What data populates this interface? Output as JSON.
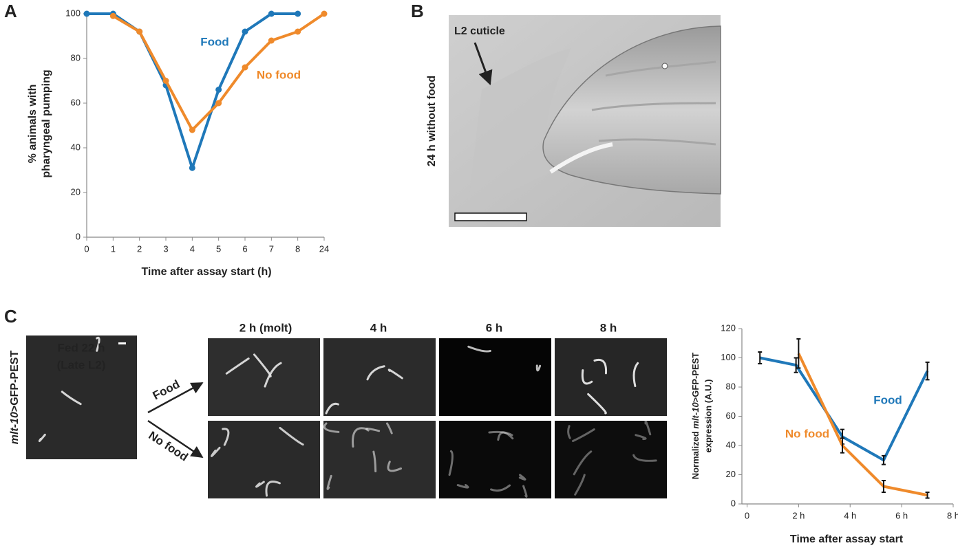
{
  "panels": {
    "a": "A",
    "b": "B",
    "c": "C"
  },
  "chart_data": [
    {
      "type": "line",
      "categories": [
        "0",
        "1",
        "2",
        "3",
        "4",
        "5",
        "6",
        "7",
        "8",
        "24"
      ],
      "xlabel": "Time after assay start (h)",
      "ylabel": [
        "% animals with",
        "pharyngeal pumping"
      ],
      "ylim": [
        0,
        100
      ],
      "yticks": [
        0,
        20,
        40,
        60,
        80,
        100
      ],
      "markers": true,
      "series": [
        {
          "name": "Food",
          "color": "#1f78b9",
          "values": [
            100,
            100,
            92,
            68,
            31,
            66,
            92,
            100,
            100,
            null
          ]
        },
        {
          "name": "No food",
          "color": "#ef8a2b",
          "values": [
            null,
            99,
            92,
            70,
            48,
            60,
            76,
            88,
            92,
            100
          ]
        }
      ]
    },
    {
      "type": "line",
      "xlabel": "Time after assay start",
      "ylabel": [
        [
          "Normalized ",
          "mlt-10",
          ">GFP-PEST"
        ],
        "expression (A.U.)"
      ],
      "xlim": [
        -0.2,
        8
      ],
      "xticks": [
        0,
        {
          "value": 2,
          "label": "2 h"
        },
        {
          "value": 4,
          "label": "4 h"
        },
        {
          "value": 6,
          "label": "6 h"
        },
        {
          "value": 8,
          "label": "8 h"
        }
      ],
      "ylim": [
        0,
        120
      ],
      "yticks": [
        0,
        20,
        40,
        60,
        80,
        100,
        120
      ],
      "markers": false,
      "series": [
        {
          "name": "Food",
          "color": "#1f78b9",
          "x": [
            0.5,
            1.9,
            3.7,
            5.3,
            7.0
          ],
          "values": [
            100,
            95,
            46,
            30,
            91
          ],
          "errors": [
            4,
            5,
            5,
            3,
            6
          ]
        },
        {
          "name": "No food",
          "color": "#ef8a2b",
          "x": [
            2.0,
            3.7,
            5.3,
            7.0
          ],
          "values": [
            103,
            40,
            12,
            6
          ],
          "errors": [
            10,
            5,
            4,
            2
          ]
        }
      ]
    }
  ],
  "micrograph_b": {
    "label": "L2 cuticle",
    "side_label": "24 h without food"
  },
  "panel_c": {
    "start_title": [
      "Fed 22 h",
      "(Late L2)"
    ],
    "reporter": [
      "mlt-10",
      ">GFP-PEST"
    ],
    "conditions": [
      "Food",
      "No food"
    ],
    "timepoints": [
      "2 h (molt)",
      "4 h",
      "6 h",
      "8 h"
    ]
  }
}
